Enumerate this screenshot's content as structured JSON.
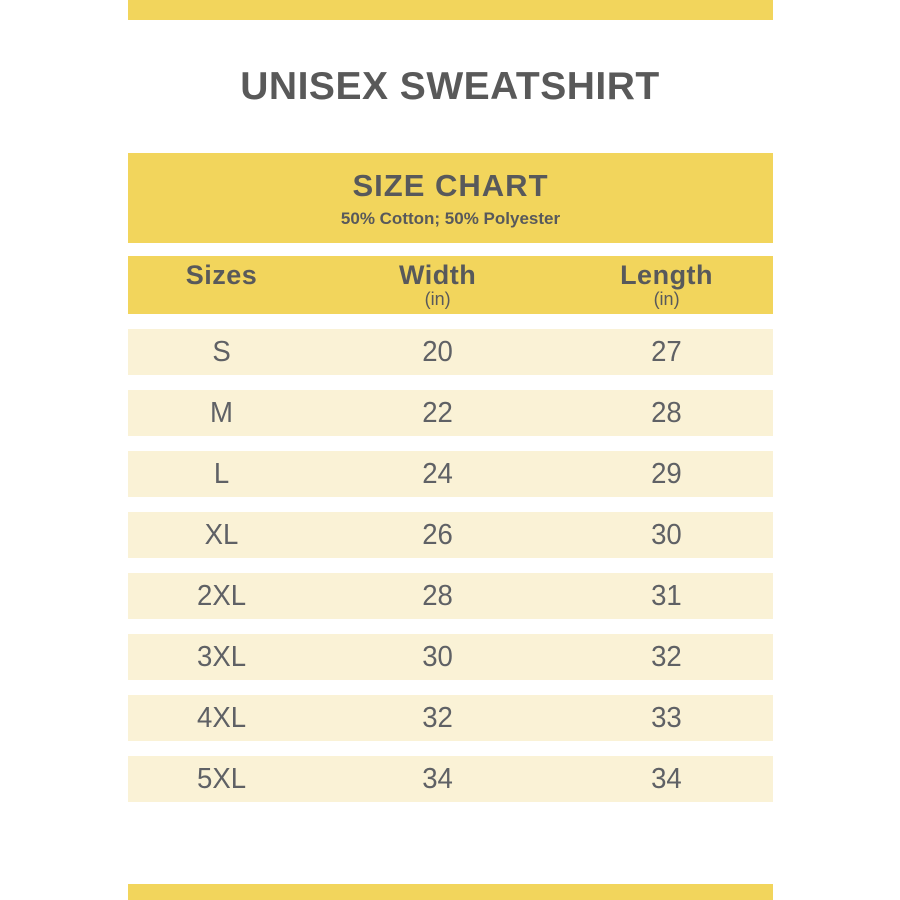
{
  "page": {
    "title": "UNISEX SWEATSHIRT"
  },
  "theme": {
    "accent_yellow": "#F2D55C",
    "row_cream": "#FAF2D6",
    "heading_gray": "#58595B",
    "row_text_gray": "#5F6165"
  },
  "size_chart": {
    "heading": "SIZE CHART",
    "subheading": "50% Cotton; 50% Polyester",
    "columns": [
      {
        "label": "Sizes",
        "unit": ""
      },
      {
        "label": "Width",
        "unit": "(in)"
      },
      {
        "label": "Length",
        "unit": "(in)"
      }
    ],
    "rows": [
      {
        "size": "S",
        "width": "20",
        "length": "27"
      },
      {
        "size": "M",
        "width": "22",
        "length": "28"
      },
      {
        "size": "L",
        "width": "24",
        "length": "29"
      },
      {
        "size": "XL",
        "width": "26",
        "length": "30"
      },
      {
        "size": "2XL",
        "width": "28",
        "length": "31"
      },
      {
        "size": "3XL",
        "width": "30",
        "length": "32"
      },
      {
        "size": "4XL",
        "width": "32",
        "length": "33"
      },
      {
        "size": "5XL",
        "width": "34",
        "length": "34"
      }
    ]
  },
  "chart_data": {
    "type": "table",
    "title": "SIZE CHART",
    "subtitle": "50% Cotton; 50% Polyester",
    "columns": [
      "Sizes",
      "Width (in)",
      "Length (in)"
    ],
    "rows": [
      [
        "S",
        "20",
        "27"
      ],
      [
        "M",
        "22",
        "28"
      ],
      [
        "L",
        "24",
        "29"
      ],
      [
        "XL",
        "26",
        "30"
      ],
      [
        "2XL",
        "28",
        "31"
      ],
      [
        "3XL",
        "30",
        "32"
      ],
      [
        "4XL",
        "32",
        "33"
      ],
      [
        "5XL",
        "34",
        "34"
      ]
    ]
  }
}
